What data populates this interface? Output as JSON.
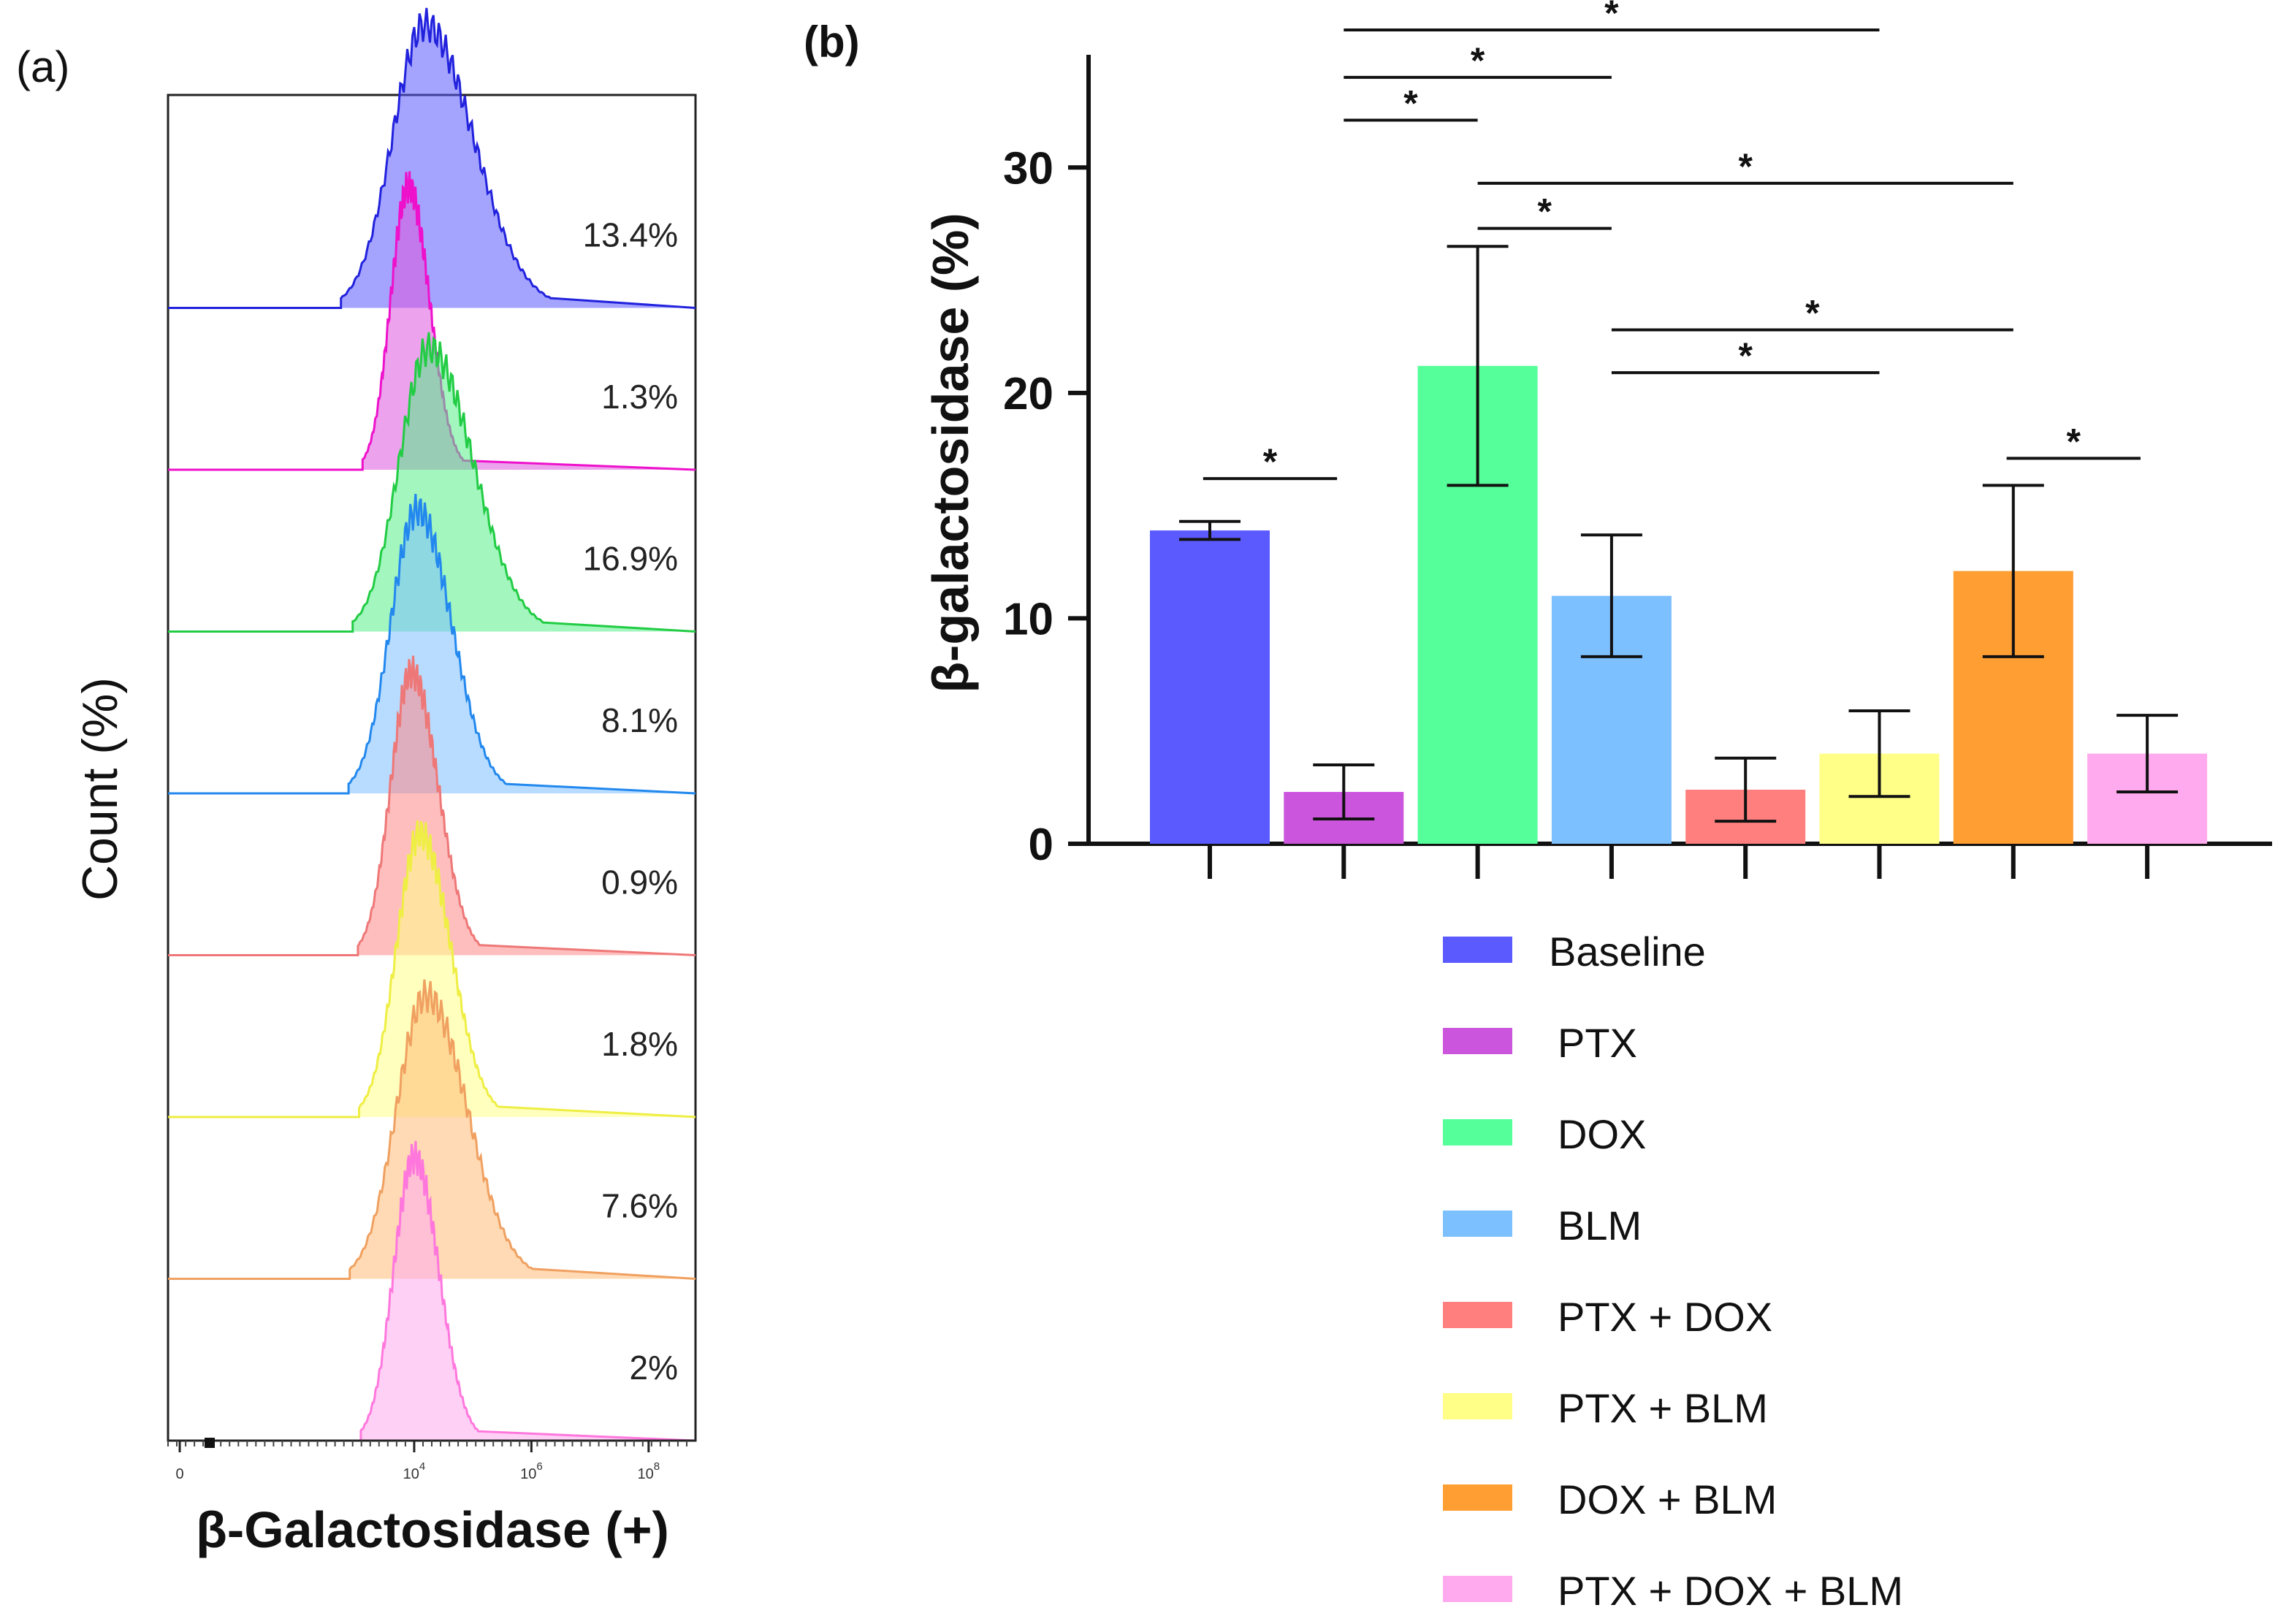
{
  "panels": {
    "a_label": "(a)",
    "b_label": "(b)"
  },
  "chart_data": [
    {
      "id": "histogram",
      "type": "area",
      "title": "",
      "xlabel": "β-Galactosidase (+)",
      "ylabel": "Count (%)",
      "x_scale": "log",
      "x_ticks": [
        {
          "base": "0",
          "exp": ""
        },
        {
          "base": "10",
          "exp": "4"
        },
        {
          "base": "10",
          "exp": "6"
        },
        {
          "base": "10",
          "exp": "8"
        }
      ],
      "x_tick_values": [
        0,
        4,
        6,
        8
      ],
      "xlim": [
        -0.2,
        8.8
      ],
      "series": [
        {
          "name": "Baseline",
          "color": "#5a5aff",
          "line": "#2222dd",
          "label": "13.4%",
          "peak_log": 4.18,
          "width_log": 0.55,
          "skew": 1.5
        },
        {
          "name": "PTX",
          "color": "#dd55dd",
          "line": "#ee11cc",
          "label": "1.3%",
          "peak_log": 3.9,
          "width_log": 0.3,
          "skew": 1.2
        },
        {
          "name": "DOX",
          "color": "#55ee88",
          "line": "#22cc44",
          "label": "16.9%",
          "peak_log": 4.25,
          "width_log": 0.5,
          "skew": 1.5
        },
        {
          "name": "BLM",
          "color": "#7dc0ff",
          "line": "#2288ee",
          "label": "8.1%",
          "peak_log": 4.05,
          "width_log": 0.45,
          "skew": 1.3
        },
        {
          "name": "PTX + DOX",
          "color": "#ff8888",
          "line": "#ee7777",
          "label": "0.9%",
          "peak_log": 3.95,
          "width_log": 0.35,
          "skew": 1.3
        },
        {
          "name": "PTX + BLM",
          "color": "#ffff88",
          "line": "#eeee44",
          "label": "1.8%",
          "peak_log": 4.1,
          "width_log": 0.4,
          "skew": 1.3
        },
        {
          "name": "DOX + BLM",
          "color": "#ffbb77",
          "line": "#f0a060",
          "label": "7.6%",
          "peak_log": 4.2,
          "width_log": 0.5,
          "skew": 1.4
        },
        {
          "name": "PTX + DOX + BLM",
          "color": "#ffaaee",
          "line": "#ff77dd",
          "label": "2%",
          "peak_log": 4.0,
          "width_log": 0.35,
          "skew": 1.2
        }
      ]
    },
    {
      "id": "bars",
      "type": "bar",
      "title": "",
      "xlabel": "",
      "ylabel": "β-galactosidase (%)",
      "ylim": [
        0,
        35
      ],
      "y_ticks": [
        0,
        10,
        20,
        30
      ],
      "categories": [
        "Baseline",
        "PTX",
        "DOX",
        "BLM",
        "PTX + DOX",
        "PTX + BLM",
        "DOX + BLM",
        "PTX + DOX + BLM"
      ],
      "values": [
        13.9,
        2.3,
        21.2,
        11.0,
        2.4,
        4.0,
        12.1,
        4.0
      ],
      "errors": [
        0.4,
        1.2,
        5.3,
        2.7,
        1.4,
        1.9,
        3.8,
        1.7
      ],
      "colors": [
        "#5a5aff",
        "#cc55dd",
        "#55ff99",
        "#7dc0ff",
        "#ff7f7f",
        "#ffff88",
        "#ff9f33",
        "#ffaaee"
      ],
      "significance": [
        {
          "from": 1,
          "to": 5,
          "y": 36.1,
          "label": "*"
        },
        {
          "from": 1,
          "to": 3,
          "y": 34.0,
          "label": "*"
        },
        {
          "from": 1,
          "to": 2,
          "y": 32.1,
          "label": "*"
        },
        {
          "from": 2,
          "to": 6,
          "y": 29.3,
          "label": "*"
        },
        {
          "from": 2,
          "to": 3,
          "y": 27.3,
          "label": "*"
        },
        {
          "from": 3,
          "to": 6,
          "y": 22.8,
          "label": "*"
        },
        {
          "from": 3,
          "to": 5,
          "y": 20.9,
          "label": "*"
        },
        {
          "from": -0.05,
          "to": 0.95,
          "y": 16.2,
          "label": "*"
        },
        {
          "from": 5.95,
          "to": 6.95,
          "y": 17.1,
          "label": "*"
        }
      ],
      "legend": {
        "placement": "below",
        "entries": [
          "Baseline",
          "PTX",
          "DOX",
          "BLM",
          "PTX + DOX",
          "PTX + BLM",
          "DOX + BLM",
          "PTX + DOX + BLM"
        ]
      }
    }
  ]
}
